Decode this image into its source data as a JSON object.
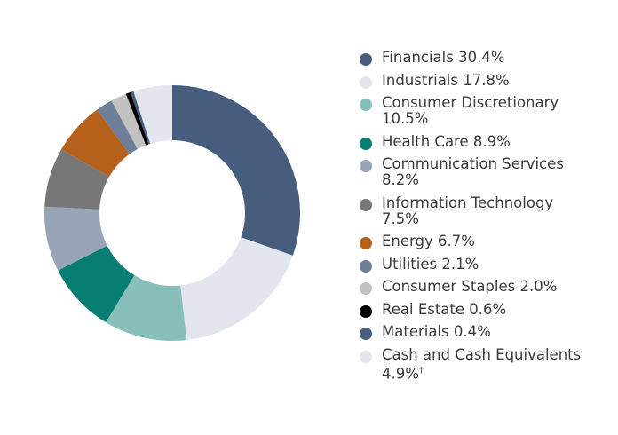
{
  "chart_data": {
    "type": "pie",
    "donut": true,
    "start": "top, clockwise",
    "legend_position": "right",
    "slices": [
      {
        "label": "Financials",
        "value": 30.4,
        "display": "30.4%",
        "color": "#475d7d"
      },
      {
        "label": "Industrials",
        "value": 17.8,
        "display": "17.8%",
        "color": "#e3e6ee"
      },
      {
        "label": "Consumer Discretionary",
        "value": 10.5,
        "display": "10.5%",
        "color": "#88bfba"
      },
      {
        "label": "Health Care",
        "value": 8.9,
        "display": "8.9%",
        "color": "#087d74"
      },
      {
        "label": "Communication Services",
        "value": 8.2,
        "display": "8.2%",
        "color": "#97a5b7"
      },
      {
        "label": "Information Technology",
        "value": 7.5,
        "display": "7.5%",
        "color": "#777777"
      },
      {
        "label": "Energy",
        "value": 6.7,
        "display": "6.7%",
        "color": "#b5601b"
      },
      {
        "label": "Utilities",
        "value": 2.1,
        "display": "2.1%",
        "color": "#6d7f98"
      },
      {
        "label": "Consumer Staples",
        "value": 2.0,
        "display": "2.0%",
        "color": "#c2c2c2"
      },
      {
        "label": "Real Estate",
        "value": 0.6,
        "display": "0.6%",
        "color": "#000000"
      },
      {
        "label": "Materials",
        "value": 0.4,
        "display": "0.4%",
        "color": "#475d7d"
      },
      {
        "label": "Cash and Cash Equivalents",
        "value": 4.9,
        "display": "4.9%",
        "footnote": "†",
        "color": "#e3e6ee"
      }
    ]
  }
}
